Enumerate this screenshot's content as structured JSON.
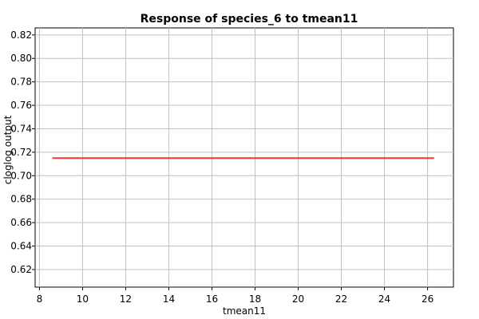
{
  "chart_data": {
    "type": "line",
    "title": "Response of species_6 to tmean11",
    "xlabel": "tmean11",
    "ylabel": "cloglog output",
    "xlim": [
      7.8,
      27.2
    ],
    "ylim": [
      0.605,
      0.826
    ],
    "xticks": [
      8,
      10,
      12,
      14,
      16,
      18,
      20,
      22,
      24,
      26
    ],
    "yticks": [
      0.62,
      0.64,
      0.66,
      0.68,
      0.7,
      0.72,
      0.74,
      0.76,
      0.78,
      0.8,
      0.82
    ],
    "grid": true,
    "series": [
      {
        "color": "#ff3030",
        "x": [
          8.6,
          26.3
        ],
        "y": [
          0.715,
          0.715
        ]
      }
    ]
  }
}
